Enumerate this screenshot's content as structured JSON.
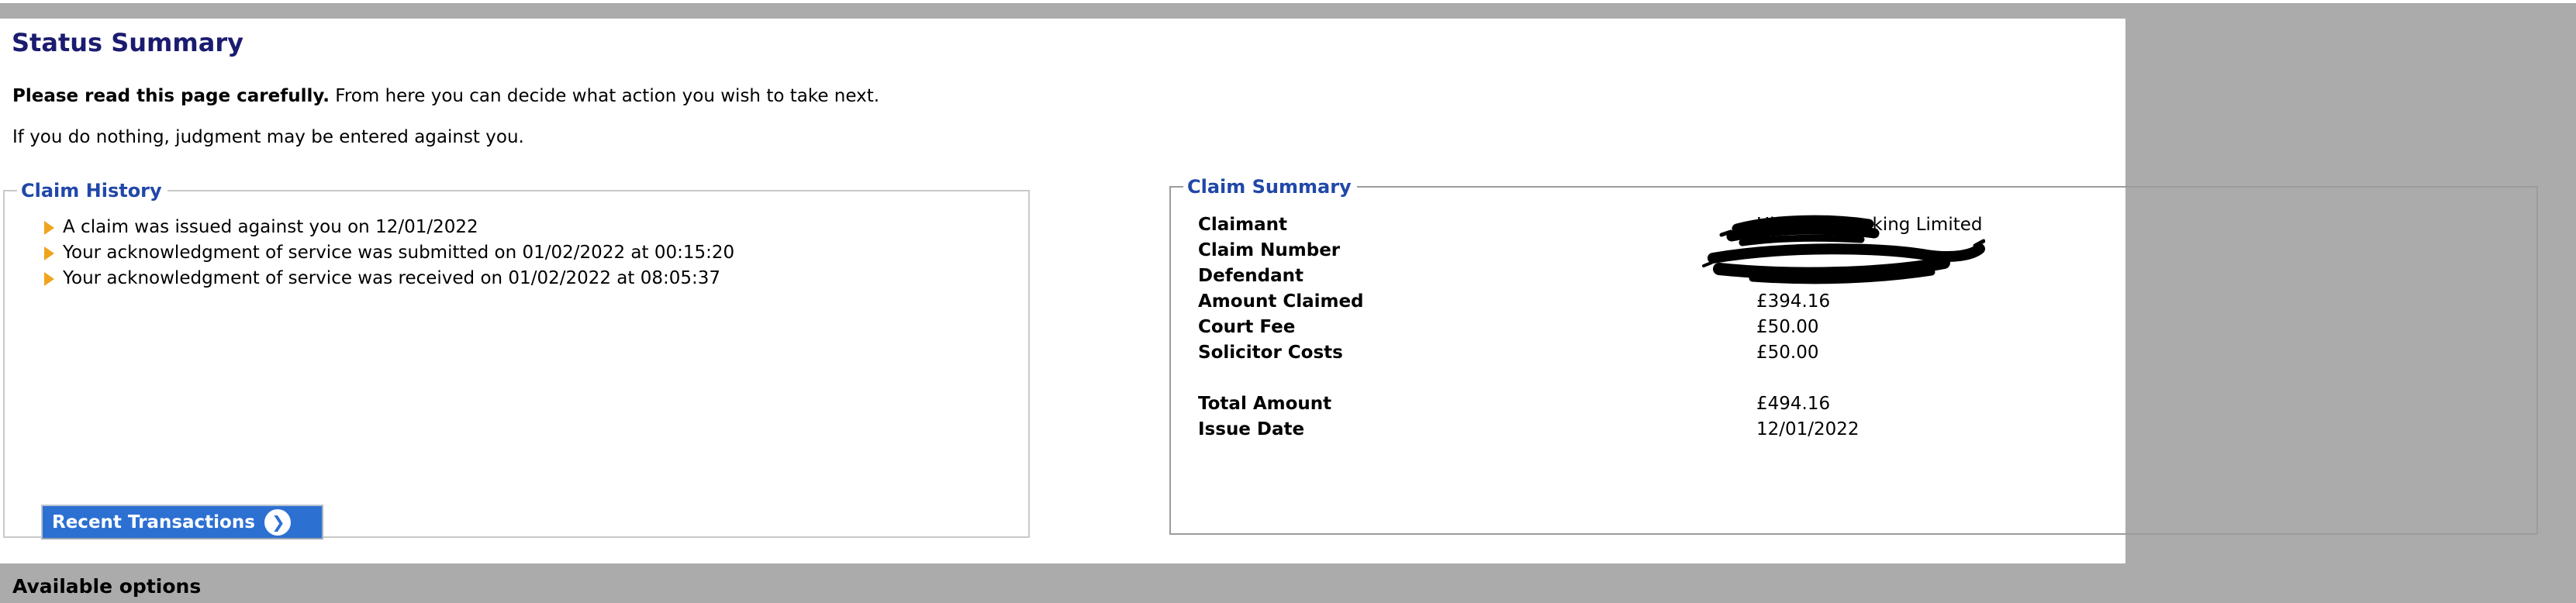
{
  "page": {
    "title": "Status Summary",
    "intro_bold": "Please read this page carefully.",
    "intro_rest": " From here you can decide what action you wish to take next.",
    "warning": "If you do nothing, judgment may be entered against you.",
    "available_options_heading": "Available options"
  },
  "claim_history": {
    "legend": "Claim History",
    "events": [
      "A claim was issued against you on 12/01/2022",
      "Your acknowledgment of service was submitted on 01/02/2022 at 00:15:20",
      "Your acknowledgment of service was received on 01/02/2022 at 08:05:37"
    ],
    "recent_transactions_label": "Recent Transactions"
  },
  "claim_summary": {
    "legend": "Claim Summary",
    "rows": [
      {
        "label": "Claimant",
        "value": "Highview Parking Limited",
        "redacted": false
      },
      {
        "label": "Claim Number",
        "value": "",
        "redacted": true
      },
      {
        "label": "Defendant",
        "value": "",
        "redacted": true
      },
      {
        "label": "Amount Claimed",
        "value": "£394.16",
        "redacted": false
      },
      {
        "label": "Court Fee",
        "value": "£50.00",
        "redacted": false
      },
      {
        "label": "Solicitor Costs",
        "value": "£50.00",
        "redacted": false
      },
      {
        "spacer": true
      },
      {
        "label": "Total Amount",
        "value": "£494.16",
        "redacted": false
      },
      {
        "label": "Issue Date",
        "value": "12/01/2022",
        "redacted": false
      }
    ]
  },
  "icons": {
    "chevron_right": "❯",
    "bullet": "arrow-right-gold",
    "redaction": "hand-drawn-black-scribble"
  },
  "colors": {
    "title_navy": "#1b1b70",
    "legend_blue": "#2147a8",
    "button_blue": "#2c70d2",
    "bullet_gold": "#f0a41e",
    "page_gray": "#ababab",
    "panel_white": "#ffffff",
    "fieldset_border_light": "#c9c9c9",
    "fieldset_border_dark": "#9c9c9c"
  }
}
